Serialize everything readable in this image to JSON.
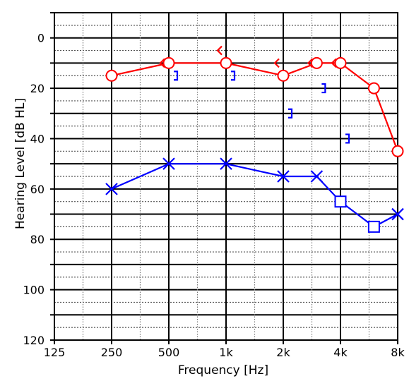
{
  "chart_data": {
    "type": "line",
    "xlabel": "Frequency [Hz]",
    "ylabel": "Hearing Level [dB HL]",
    "x_scale": "log2",
    "y_inverted": true,
    "xlim": [
      125,
      8000
    ],
    "ylim": [
      -10,
      120
    ],
    "x_ticks": [
      {
        "value": 125,
        "label": "125"
      },
      {
        "value": 250,
        "label": "250"
      },
      {
        "value": 500,
        "label": "500"
      },
      {
        "value": 1000,
        "label": "1k"
      },
      {
        "value": 2000,
        "label": "2k"
      },
      {
        "value": 4000,
        "label": "4k"
      },
      {
        "value": 8000,
        "label": "8k"
      }
    ],
    "y_ticks": [
      {
        "value": 0,
        "label": "0"
      },
      {
        "value": 20,
        "label": "20"
      },
      {
        "value": 40,
        "label": "40"
      },
      {
        "value": 60,
        "label": "60"
      },
      {
        "value": 80,
        "label": "80"
      },
      {
        "value": 100,
        "label": "100"
      },
      {
        "value": 120,
        "label": "120"
      }
    ],
    "grid": true,
    "series": [
      {
        "marker": "circle",
        "color": "#ff0000",
        "connected": true,
        "points": [
          {
            "x": 250,
            "y": 15
          },
          {
            "x": 500,
            "y": 10
          },
          {
            "x": 1000,
            "y": 10
          },
          {
            "x": 2000,
            "y": 15
          },
          {
            "x": 3000,
            "y": 10
          },
          {
            "x": 4000,
            "y": 10
          },
          {
            "x": 6000,
            "y": 20
          },
          {
            "x": 8000,
            "y": 45
          }
        ]
      },
      {
        "marker": "cross",
        "color": "#0000ff",
        "connected": true,
        "points": [
          {
            "x": 250,
            "y": 60,
            "marker": "cross"
          },
          {
            "x": 500,
            "y": 50,
            "marker": "cross"
          },
          {
            "x": 1000,
            "y": 50,
            "marker": "cross"
          },
          {
            "x": 2000,
            "y": 55,
            "marker": "cross"
          },
          {
            "x": 3000,
            "y": 55,
            "marker": "cross"
          },
          {
            "x": 4000,
            "y": 65,
            "marker": "square"
          },
          {
            "x": 6000,
            "y": 75,
            "marker": "square"
          },
          {
            "x": 8000,
            "y": 70,
            "marker": "cross"
          }
        ]
      },
      {
        "marker": "angle-left",
        "color": "#ff0000",
        "connected": false,
        "points": [
          {
            "x": 500,
            "y": 10
          },
          {
            "x": 1000,
            "y": 5
          },
          {
            "x": 2000,
            "y": 10
          },
          {
            "x": 3000,
            "y": 10
          },
          {
            "x": 4000,
            "y": 10
          }
        ]
      },
      {
        "marker": "bracket-right",
        "color": "#0000ff",
        "connected": false,
        "points": [
          {
            "x": 500,
            "y": 15
          },
          {
            "x": 1000,
            "y": 15
          },
          {
            "x": 2000,
            "y": 30
          },
          {
            "x": 3000,
            "y": 20
          },
          {
            "x": 4000,
            "y": 40
          }
        ]
      }
    ]
  }
}
